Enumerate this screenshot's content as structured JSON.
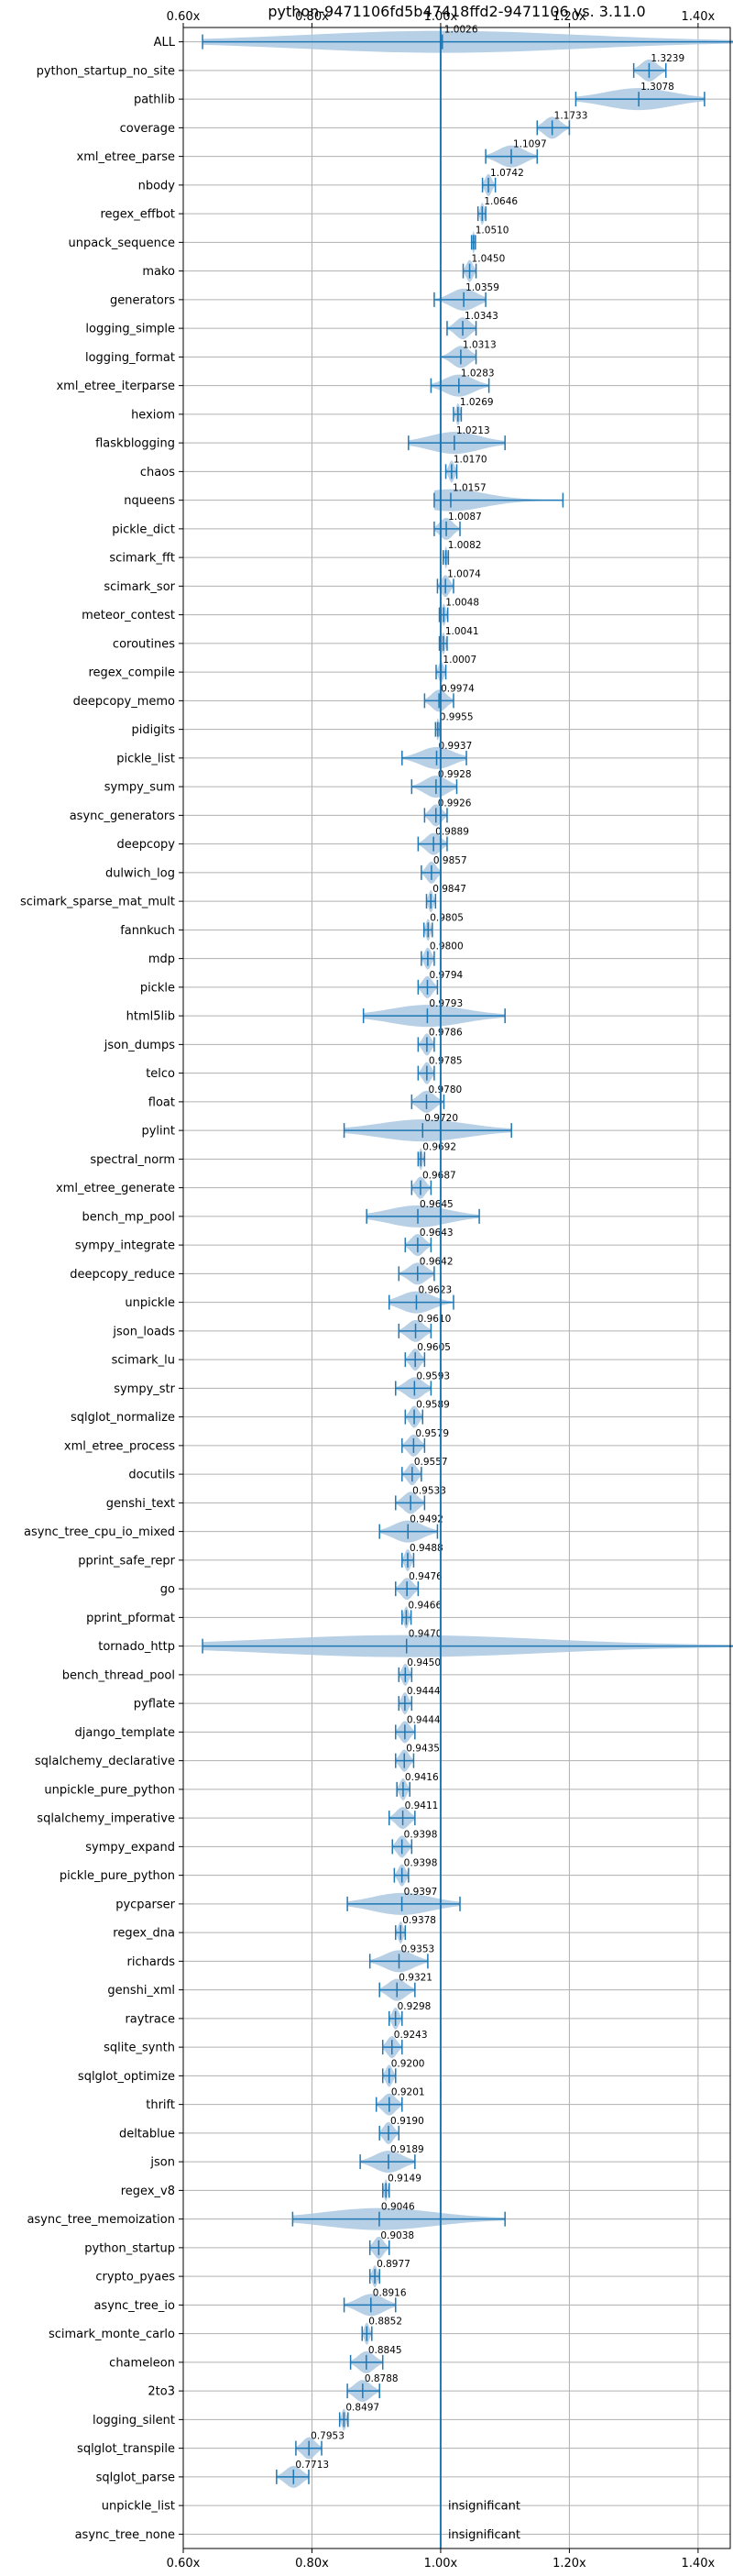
{
  "chart_data": {
    "type": "violin",
    "title": "python-9471106fd5b47418ffd2-9471106 vs. 3.11.0",
    "xlabel": "",
    "ylabel": "",
    "xlim": [
      0.6,
      1.45
    ],
    "xticks": [
      0.6,
      0.8,
      1.0,
      1.2,
      1.4
    ],
    "xtick_labels": [
      "0.60x",
      "0.80x",
      "1.00x",
      "1.20x",
      "1.40x"
    ],
    "reference_line": 1.0,
    "grid": true,
    "colors": {
      "accent": "#1f77b4",
      "violin_fill": "#aac8e2",
      "grid": "#b0b0b0"
    },
    "rows": [
      {
        "name": "ALL",
        "mean": 1.0026,
        "label": "1.0026",
        "min": 0.63,
        "max": 1.46
      },
      {
        "name": "python_startup_no_site",
        "mean": 1.3239,
        "label": "1.3239",
        "min": 1.3,
        "max": 1.35
      },
      {
        "name": "pathlib",
        "mean": 1.3078,
        "label": "1.3078",
        "min": 1.21,
        "max": 1.41
      },
      {
        "name": "coverage",
        "mean": 1.1733,
        "label": "1.1733",
        "min": 1.15,
        "max": 1.2
      },
      {
        "name": "xml_etree_parse",
        "mean": 1.1097,
        "label": "1.1097",
        "min": 1.07,
        "max": 1.15
      },
      {
        "name": "nbody",
        "mean": 1.0742,
        "label": "1.0742",
        "min": 1.065,
        "max": 1.085
      },
      {
        "name": "regex_effbot",
        "mean": 1.0646,
        "label": "1.0646",
        "min": 1.058,
        "max": 1.07
      },
      {
        "name": "unpack_sequence",
        "mean": 1.051,
        "label": "1.0510",
        "min": 1.048,
        "max": 1.054
      },
      {
        "name": "mako",
        "mean": 1.045,
        "label": "1.0450",
        "min": 1.035,
        "max": 1.055
      },
      {
        "name": "generators",
        "mean": 1.0359,
        "label": "1.0359",
        "min": 0.99,
        "max": 1.07
      },
      {
        "name": "logging_simple",
        "mean": 1.0343,
        "label": "1.0343",
        "min": 1.01,
        "max": 1.055
      },
      {
        "name": "logging_format",
        "mean": 1.0313,
        "label": "1.0313",
        "min": 1.0,
        "max": 1.055
      },
      {
        "name": "xml_etree_iterparse",
        "mean": 1.0283,
        "label": "1.0283",
        "min": 0.985,
        "max": 1.075
      },
      {
        "name": "hexiom",
        "mean": 1.0269,
        "label": "1.0269",
        "min": 1.02,
        "max": 1.032
      },
      {
        "name": "flaskblogging",
        "mean": 1.0213,
        "label": "1.0213",
        "min": 0.95,
        "max": 1.1
      },
      {
        "name": "chaos",
        "mean": 1.017,
        "label": "1.0170",
        "min": 1.008,
        "max": 1.025
      },
      {
        "name": "nqueens",
        "mean": 1.0157,
        "label": "1.0157",
        "min": 0.99,
        "max": 1.19
      },
      {
        "name": "pickle_dict",
        "mean": 1.0087,
        "label": "1.0087",
        "min": 0.99,
        "max": 1.03
      },
      {
        "name": "scimark_fft",
        "mean": 1.0082,
        "label": "1.0082",
        "min": 1.004,
        "max": 1.012
      },
      {
        "name": "scimark_sor",
        "mean": 1.0074,
        "label": "1.0074",
        "min": 0.995,
        "max": 1.02
      },
      {
        "name": "meteor_contest",
        "mean": 1.0048,
        "label": "1.0048",
        "min": 0.998,
        "max": 1.011
      },
      {
        "name": "coroutines",
        "mean": 1.0041,
        "label": "1.0041",
        "min": 0.998,
        "max": 1.01
      },
      {
        "name": "regex_compile",
        "mean": 1.0007,
        "label": "1.0007",
        "min": 0.993,
        "max": 1.008
      },
      {
        "name": "deepcopy_memo",
        "mean": 0.9974,
        "label": "0.9974",
        "min": 0.975,
        "max": 1.02
      },
      {
        "name": "pidigits",
        "mean": 0.9955,
        "label": "0.9955",
        "min": 0.992,
        "max": 0.999
      },
      {
        "name": "pickle_list",
        "mean": 0.9937,
        "label": "0.9937",
        "min": 0.94,
        "max": 1.04
      },
      {
        "name": "sympy_sum",
        "mean": 0.9928,
        "label": "0.9928",
        "min": 0.955,
        "max": 1.025
      },
      {
        "name": "async_generators",
        "mean": 0.9926,
        "label": "0.9926",
        "min": 0.975,
        "max": 1.01
      },
      {
        "name": "deepcopy",
        "mean": 0.9889,
        "label": "0.9889",
        "min": 0.965,
        "max": 1.01
      },
      {
        "name": "dulwich_log",
        "mean": 0.9857,
        "label": "0.9857",
        "min": 0.97,
        "max": 1.0
      },
      {
        "name": "scimark_sparse_mat_mult",
        "mean": 0.9847,
        "label": "0.9847",
        "min": 0.978,
        "max": 0.992
      },
      {
        "name": "fannkuch",
        "mean": 0.9805,
        "label": "0.9805",
        "min": 0.974,
        "max": 0.987
      },
      {
        "name": "mdp",
        "mean": 0.98,
        "label": "0.9800",
        "min": 0.97,
        "max": 0.99
      },
      {
        "name": "pickle",
        "mean": 0.9794,
        "label": "0.9794",
        "min": 0.965,
        "max": 0.995
      },
      {
        "name": "html5lib",
        "mean": 0.9793,
        "label": "0.9793",
        "min": 0.88,
        "max": 1.1
      },
      {
        "name": "json_dumps",
        "mean": 0.9786,
        "label": "0.9786",
        "min": 0.965,
        "max": 0.99
      },
      {
        "name": "telco",
        "mean": 0.9785,
        "label": "0.9785",
        "min": 0.965,
        "max": 0.99
      },
      {
        "name": "float",
        "mean": 0.978,
        "label": "0.9780",
        "min": 0.955,
        "max": 1.005
      },
      {
        "name": "pylint",
        "mean": 0.972,
        "label": "0.9720",
        "min": 0.85,
        "max": 1.11
      },
      {
        "name": "spectral_norm",
        "mean": 0.9692,
        "label": "0.9692",
        "min": 0.965,
        "max": 0.975
      },
      {
        "name": "xml_etree_generate",
        "mean": 0.9687,
        "label": "0.9687",
        "min": 0.955,
        "max": 0.985
      },
      {
        "name": "bench_mp_pool",
        "mean": 0.9645,
        "label": "0.9645",
        "min": 0.885,
        "max": 1.06
      },
      {
        "name": "sympy_integrate",
        "mean": 0.9643,
        "label": "0.9643",
        "min": 0.945,
        "max": 0.985
      },
      {
        "name": "deepcopy_reduce",
        "mean": 0.9642,
        "label": "0.9642",
        "min": 0.935,
        "max": 0.99
      },
      {
        "name": "unpickle",
        "mean": 0.9623,
        "label": "0.9623",
        "min": 0.92,
        "max": 1.02
      },
      {
        "name": "json_loads",
        "mean": 0.961,
        "label": "0.9610",
        "min": 0.935,
        "max": 0.985
      },
      {
        "name": "scimark_lu",
        "mean": 0.9605,
        "label": "0.9605",
        "min": 0.945,
        "max": 0.975
      },
      {
        "name": "sympy_str",
        "mean": 0.9593,
        "label": "0.9593",
        "min": 0.93,
        "max": 0.985
      },
      {
        "name": "sqlglot_normalize",
        "mean": 0.9589,
        "label": "0.9589",
        "min": 0.945,
        "max": 0.972
      },
      {
        "name": "xml_etree_process",
        "mean": 0.9579,
        "label": "0.9579",
        "min": 0.94,
        "max": 0.975
      },
      {
        "name": "docutils",
        "mean": 0.9557,
        "label": "0.9557",
        "min": 0.94,
        "max": 0.97
      },
      {
        "name": "genshi_text",
        "mean": 0.9533,
        "label": "0.9533",
        "min": 0.93,
        "max": 0.975
      },
      {
        "name": "async_tree_cpu_io_mixed",
        "mean": 0.9492,
        "label": "0.9492",
        "min": 0.905,
        "max": 0.995
      },
      {
        "name": "pprint_safe_repr",
        "mean": 0.9488,
        "label": "0.9488",
        "min": 0.94,
        "max": 0.958
      },
      {
        "name": "go",
        "mean": 0.9476,
        "label": "0.9476",
        "min": 0.93,
        "max": 0.965
      },
      {
        "name": "pprint_pformat",
        "mean": 0.9466,
        "label": "0.9466",
        "min": 0.94,
        "max": 0.954
      },
      {
        "name": "tornado_http",
        "mean": 0.947,
        "label": "0.9470",
        "min": 0.63,
        "max": 1.46
      },
      {
        "name": "bench_thread_pool",
        "mean": 0.945,
        "label": "0.9450",
        "min": 0.935,
        "max": 0.955
      },
      {
        "name": "pyflate",
        "mean": 0.9444,
        "label": "0.9444",
        "min": 0.935,
        "max": 0.955
      },
      {
        "name": "django_template",
        "mean": 0.9444,
        "label": "0.9444",
        "min": 0.93,
        "max": 0.96
      },
      {
        "name": "sqlalchemy_declarative",
        "mean": 0.9435,
        "label": "0.9435",
        "min": 0.93,
        "max": 0.958
      },
      {
        "name": "unpickle_pure_python",
        "mean": 0.9416,
        "label": "0.9416",
        "min": 0.932,
        "max": 0.952
      },
      {
        "name": "sqlalchemy_imperative",
        "mean": 0.9411,
        "label": "0.9411",
        "min": 0.92,
        "max": 0.96
      },
      {
        "name": "sympy_expand",
        "mean": 0.9398,
        "label": "0.9398",
        "min": 0.925,
        "max": 0.955
      },
      {
        "name": "pickle_pure_python",
        "mean": 0.9398,
        "label": "0.9398",
        "min": 0.928,
        "max": 0.95
      },
      {
        "name": "pycparser",
        "mean": 0.9397,
        "label": "0.9397",
        "min": 0.855,
        "max": 1.03
      },
      {
        "name": "regex_dna",
        "mean": 0.9378,
        "label": "0.9378",
        "min": 0.93,
        "max": 0.945
      },
      {
        "name": "richards",
        "mean": 0.9353,
        "label": "0.9353",
        "min": 0.89,
        "max": 0.98
      },
      {
        "name": "genshi_xml",
        "mean": 0.9321,
        "label": "0.9321",
        "min": 0.905,
        "max": 0.96
      },
      {
        "name": "raytrace",
        "mean": 0.9298,
        "label": "0.9298",
        "min": 0.92,
        "max": 0.94
      },
      {
        "name": "sqlite_synth",
        "mean": 0.9243,
        "label": "0.9243",
        "min": 0.91,
        "max": 0.94
      },
      {
        "name": "sqlglot_optimize",
        "mean": 0.92,
        "label": "0.9200",
        "min": 0.91,
        "max": 0.93
      },
      {
        "name": "thrift",
        "mean": 0.9201,
        "label": "0.9201",
        "min": 0.9,
        "max": 0.94
      },
      {
        "name": "deltablue",
        "mean": 0.919,
        "label": "0.9190",
        "min": 0.905,
        "max": 0.935
      },
      {
        "name": "json",
        "mean": 0.9189,
        "label": "0.9189",
        "min": 0.875,
        "max": 0.96
      },
      {
        "name": "regex_v8",
        "mean": 0.9149,
        "label": "0.9149",
        "min": 0.91,
        "max": 0.92
      },
      {
        "name": "async_tree_memoization",
        "mean": 0.9046,
        "label": "0.9046",
        "min": 0.77,
        "max": 1.1
      },
      {
        "name": "python_startup",
        "mean": 0.9038,
        "label": "0.9038",
        "min": 0.89,
        "max": 0.92
      },
      {
        "name": "crypto_pyaes",
        "mean": 0.8977,
        "label": "0.8977",
        "min": 0.89,
        "max": 0.905
      },
      {
        "name": "async_tree_io",
        "mean": 0.8916,
        "label": "0.8916",
        "min": 0.85,
        "max": 0.93
      },
      {
        "name": "scimark_monte_carlo",
        "mean": 0.8852,
        "label": "0.8852",
        "min": 0.878,
        "max": 0.893
      },
      {
        "name": "chameleon",
        "mean": 0.8845,
        "label": "0.8845",
        "min": 0.86,
        "max": 0.91
      },
      {
        "name": "2to3",
        "mean": 0.8788,
        "label": "0.8788",
        "min": 0.855,
        "max": 0.905
      },
      {
        "name": "logging_silent",
        "mean": 0.8497,
        "label": "0.8497",
        "min": 0.843,
        "max": 0.856
      },
      {
        "name": "sqlglot_transpile",
        "mean": 0.7953,
        "label": "0.7953",
        "min": 0.775,
        "max": 0.815
      },
      {
        "name": "sqlglot_parse",
        "mean": 0.7713,
        "label": "0.7713",
        "min": 0.745,
        "max": 0.795
      },
      {
        "name": "unpickle_list",
        "insignificant": true,
        "label": "insignificant"
      },
      {
        "name": "async_tree_none",
        "insignificant": true,
        "label": "insignificant"
      }
    ]
  }
}
